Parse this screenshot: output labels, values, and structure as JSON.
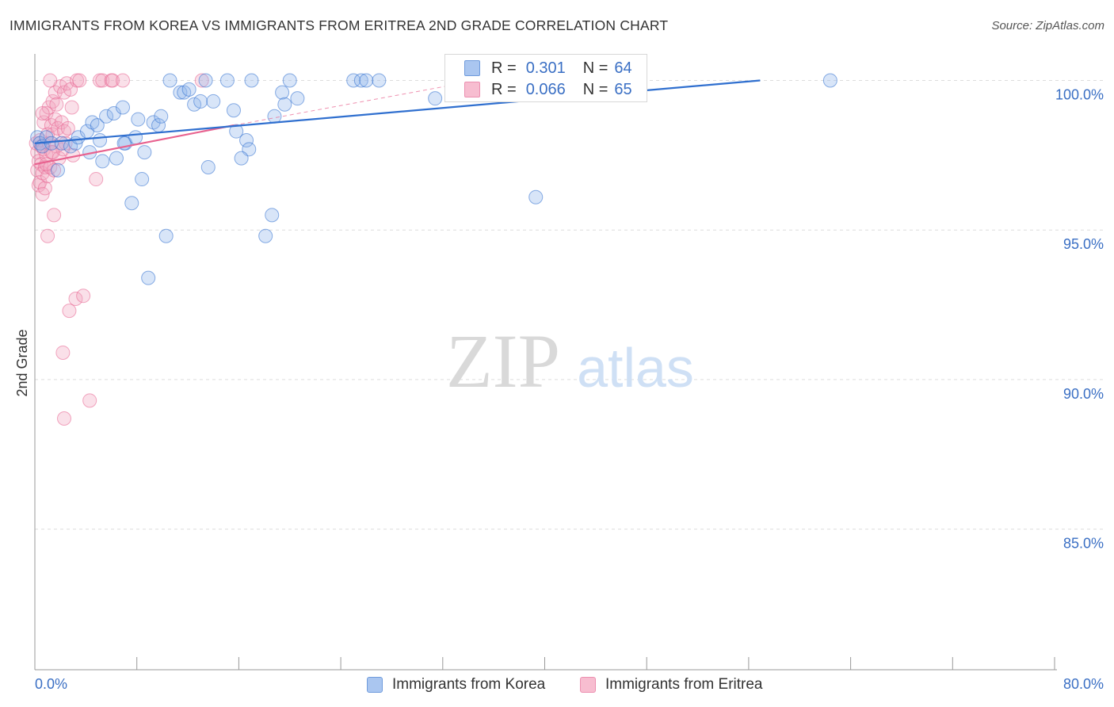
{
  "title": "IMMIGRANTS FROM KOREA VS IMMIGRANTS FROM ERITREA 2ND GRADE CORRELATION CHART",
  "source": "Source: ZipAtlas.com",
  "watermark": {
    "zip": "ZIP",
    "atlas": "atlas"
  },
  "legend": {
    "series1": {
      "r_label": "R =",
      "r_value": "0.301",
      "n_label": "N =",
      "n_value": "64"
    },
    "series2": {
      "r_label": "R =",
      "r_value": "0.066",
      "n_label": "N =",
      "n_value": "65"
    }
  },
  "colors": {
    "korea": "#8fb4ea",
    "korea_line": "#2f6fcf",
    "eritrea": "#f2a6bf",
    "eritrea_line": "#e8628f",
    "tick_text": "#3a6fc4",
    "grid": "#dddddd"
  },
  "chart_data": {
    "type": "scatter",
    "title": "IMMIGRANTS FROM KOREA VS IMMIGRANTS FROM ERITREA 2ND GRADE CORRELATION CHART",
    "xlabel": "",
    "ylabel": "2nd Grade",
    "xlim": [
      0,
      80
    ],
    "ylim": [
      80.3,
      101.1
    ],
    "x_tick_labels": [
      "0.0%",
      "80.0%"
    ],
    "y_ticks": [
      100,
      95,
      90,
      85
    ],
    "y_tick_labels": [
      "100.0%",
      "95.0%",
      "90.0%",
      "85.0%"
    ],
    "grid": true,
    "legend_position": "top-center",
    "series": [
      {
        "name": "Immigrants from Korea",
        "r": 0.301,
        "n": 64,
        "trend": {
          "x": [
            0,
            56.9
          ],
          "y": [
            97.9,
            100.0
          ]
        },
        "points": [
          [
            0.2,
            98.1
          ],
          [
            0.4,
            97.9
          ],
          [
            0.6,
            97.8
          ],
          [
            0.9,
            98.1
          ],
          [
            1.3,
            97.9
          ],
          [
            1.8,
            97.0
          ],
          [
            2.1,
            97.9
          ],
          [
            2.8,
            97.8
          ],
          [
            3.2,
            97.9
          ],
          [
            3.4,
            98.1
          ],
          [
            4.1,
            98.3
          ],
          [
            4.3,
            97.6
          ],
          [
            4.5,
            98.6
          ],
          [
            4.9,
            98.5
          ],
          [
            5.1,
            98.0
          ],
          [
            5.3,
            97.3
          ],
          [
            5.6,
            98.8
          ],
          [
            6.2,
            98.9
          ],
          [
            6.4,
            97.4
          ],
          [
            6.9,
            99.1
          ],
          [
            7.1,
            97.9
          ],
          [
            7.6,
            95.9
          ],
          [
            7.9,
            98.1
          ],
          [
            8.1,
            98.7
          ],
          [
            8.4,
            96.7
          ],
          [
            8.6,
            97.6
          ],
          [
            8.9,
            93.4
          ],
          [
            9.3,
            98.6
          ],
          [
            9.7,
            98.5
          ],
          [
            9.9,
            98.8
          ],
          [
            10.3,
            94.8
          ],
          [
            10.6,
            100.0
          ],
          [
            11.4,
            99.6
          ],
          [
            11.7,
            99.6
          ],
          [
            12.1,
            99.7
          ],
          [
            12.5,
            99.2
          ],
          [
            13.0,
            99.3
          ],
          [
            13.4,
            100.0
          ],
          [
            13.6,
            97.1
          ],
          [
            14.0,
            99.3
          ],
          [
            15.1,
            100.0
          ],
          [
            15.6,
            99.0
          ],
          [
            15.8,
            98.3
          ],
          [
            16.6,
            98.0
          ],
          [
            16.8,
            97.7
          ],
          [
            17.0,
            100.0
          ],
          [
            18.1,
            94.8
          ],
          [
            18.6,
            95.5
          ],
          [
            18.8,
            98.8
          ],
          [
            19.4,
            99.6
          ],
          [
            19.6,
            99.2
          ],
          [
            20.0,
            100.0
          ],
          [
            20.6,
            99.4
          ],
          [
            25.0,
            100.0
          ],
          [
            25.6,
            100.0
          ],
          [
            26.0,
            100.0
          ],
          [
            27.0,
            100.0
          ],
          [
            31.4,
            99.4
          ],
          [
            34.4,
            100.0
          ],
          [
            39.3,
            96.1
          ],
          [
            39.8,
            100.0
          ],
          [
            62.4,
            100.0
          ],
          [
            16.2,
            97.4
          ],
          [
            7.0,
            97.9
          ]
        ]
      },
      {
        "name": "Immigrants from Eritrea",
        "r": 0.066,
        "n": 65,
        "trend": {
          "x": [
            0,
            15.6
          ],
          "y": [
            97.2,
            98.5
          ]
        },
        "trend_extension": {
          "x": [
            15.6,
            34.7
          ],
          "y": [
            98.5,
            100.0
          ]
        },
        "points": [
          [
            0.1,
            97.9
          ],
          [
            0.2,
            97.6
          ],
          [
            0.2,
            97.0
          ],
          [
            0.3,
            96.5
          ],
          [
            0.3,
            97.3
          ],
          [
            0.4,
            98.0
          ],
          [
            0.4,
            96.6
          ],
          [
            0.5,
            97.8
          ],
          [
            0.5,
            97.2
          ],
          [
            0.6,
            96.9
          ],
          [
            0.6,
            96.2
          ],
          [
            0.7,
            98.6
          ],
          [
            0.7,
            97.7
          ],
          [
            0.8,
            97.1
          ],
          [
            0.8,
            96.4
          ],
          [
            0.9,
            98.9
          ],
          [
            0.9,
            97.5
          ],
          [
            1.0,
            98.2
          ],
          [
            1.0,
            96.8
          ],
          [
            1.0,
            94.8
          ],
          [
            1.1,
            99.1
          ],
          [
            1.1,
            97.9
          ],
          [
            1.2,
            97.1
          ],
          [
            1.3,
            98.5
          ],
          [
            1.3,
            97.6
          ],
          [
            1.4,
            99.3
          ],
          [
            1.4,
            98.2
          ],
          [
            1.5,
            97.0
          ],
          [
            1.5,
            95.5
          ],
          [
            1.6,
            99.6
          ],
          [
            1.6,
            98.7
          ],
          [
            1.7,
            97.8
          ],
          [
            1.7,
            99.2
          ],
          [
            1.8,
            98.4
          ],
          [
            1.9,
            97.4
          ],
          [
            2.0,
            99.8
          ],
          [
            2.1,
            98.6
          ],
          [
            2.2,
            97.7
          ],
          [
            2.2,
            90.9
          ],
          [
            2.3,
            99.6
          ],
          [
            2.3,
            98.3
          ],
          [
            2.4,
            97.9
          ],
          [
            2.5,
            99.9
          ],
          [
            2.6,
            98.4
          ],
          [
            2.7,
            92.3
          ],
          [
            2.8,
            99.7
          ],
          [
            2.9,
            99.1
          ],
          [
            3.0,
            97.5
          ],
          [
            3.2,
            92.7
          ],
          [
            3.3,
            100.0
          ],
          [
            3.5,
            100.0
          ],
          [
            3.8,
            92.8
          ],
          [
            4.3,
            89.3
          ],
          [
            4.8,
            96.7
          ],
          [
            5.1,
            100.0
          ],
          [
            5.3,
            100.0
          ],
          [
            6.0,
            100.0
          ],
          [
            6.1,
            100.0
          ],
          [
            6.9,
            100.0
          ],
          [
            13.1,
            100.0
          ],
          [
            1.2,
            100.0
          ],
          [
            0.6,
            98.9
          ],
          [
            0.9,
            97.2
          ],
          [
            2.3,
            88.7
          ],
          [
            1.4,
            97.6
          ]
        ]
      }
    ]
  },
  "bottom_legend": {
    "korea": "Immigrants from Korea",
    "eritrea": "Immigrants from Eritrea"
  }
}
